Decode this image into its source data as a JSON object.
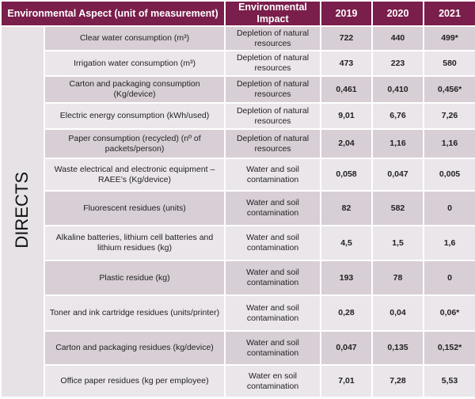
{
  "header": {
    "aspect": "Environmental Aspect (unit of measurement)",
    "impact": "Environmental Impact",
    "years": [
      "2019",
      "2020",
      "2021"
    ]
  },
  "table": {
    "group": "DIRECTS",
    "rows": [
      [
        "Clear water consumption (m³)",
        "Depletion of natural resources",
        "722",
        "440",
        "499*"
      ],
      [
        "Irrigation water consumption (m³)",
        "Depletion of natural resources",
        "473",
        "223",
        "580"
      ],
      [
        "Carton and packaging consumption (Kg/device)",
        "Depletion of natural resources",
        "0,461",
        "0,410",
        "0,456*"
      ],
      [
        "Electric energy consumption (kWh/used)",
        "Depletion of natural resources",
        "9,01",
        "6,76",
        "7,26"
      ],
      [
        "Paper consumption (recycled) (nº of packets/person)",
        "Depletion of natural resources",
        "2,04",
        "1,16",
        "1,16"
      ],
      [
        "Waste electrical and electronic equipment – RAEE’s (Kg/device)",
        "Water and soil contamination",
        "0,058",
        "0,047",
        "0,005"
      ],
      [
        "Fluorescent residues (units)",
        "Water and soil contamination",
        "82",
        "582",
        "0"
      ],
      [
        "Alkaline batteries, lithium cell batteries and lithium residues (kg)",
        "Water and soil contamination",
        "4,5",
        "1,5",
        "1,6"
      ],
      [
        "Plastic residue (kg)",
        "Water and soil contamination",
        "193",
        "78",
        "0"
      ],
      [
        "Toner and ink cartridge residues (units/printer)",
        "Water and soil contamination",
        "0,28",
        "0,04",
        "0,06*"
      ],
      [
        "Carton and packaging residues (kg/device)",
        "Water and soil contamination",
        "0,047",
        "0,135",
        "0,152*"
      ],
      [
        "Office paper residues (kg per employee)",
        "Water en soil contamination",
        "7,01",
        "7,28",
        "5,53"
      ]
    ]
  }
}
